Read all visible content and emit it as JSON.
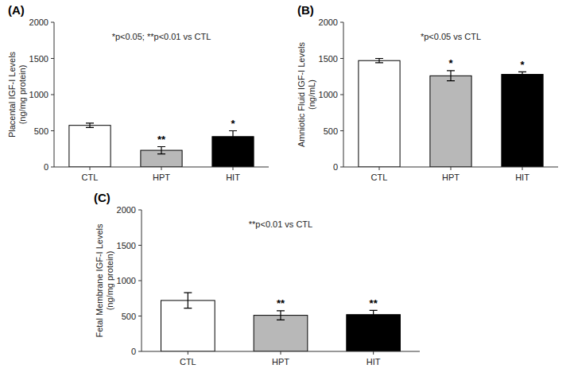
{
  "chart_data": [
    {
      "type": "bar",
      "title": "(A)",
      "categories": [
        "CTL",
        "HPT",
        "HIT"
      ],
      "values": [
        575,
        230,
        420
      ],
      "errors": [
        30,
        50,
        80
      ],
      "colors": [
        "white",
        "#b8b8b8",
        "black"
      ],
      "ylabel": "Placental IGF-I Levels\n(ng/mg protein)",
      "ylim": [
        0,
        2000
      ],
      "yticks": [
        0,
        500,
        1000,
        1500,
        2000
      ],
      "annotations": [
        "*p<0.05; **p<0.01 vs CTL"
      ],
      "sig_labels": [
        null,
        "**",
        "*"
      ],
      "grid": false
    },
    {
      "type": "bar",
      "title": "(B)",
      "categories": [
        "CTL",
        "HPT",
        "HIT"
      ],
      "values": [
        1470,
        1260,
        1280
      ],
      "errors": [
        30,
        70,
        35
      ],
      "colors": [
        "white",
        "#b8b8b8",
        "black"
      ],
      "ylabel": "Amniotic Fluid IGF-I Levels\n(ng/mL)",
      "ylim": [
        0,
        2000
      ],
      "yticks": [
        0,
        500,
        1000,
        1500,
        2000
      ],
      "annotations": [
        "*p<0.05 vs CTL"
      ],
      "sig_labels": [
        null,
        "*",
        "*"
      ],
      "grid": false
    },
    {
      "type": "bar",
      "title": "(C)",
      "categories": [
        "CTL",
        "HPT",
        "HIT"
      ],
      "values": [
        720,
        510,
        520
      ],
      "errors": [
        110,
        65,
        60
      ],
      "colors": [
        "white",
        "#b8b8b8",
        "black"
      ],
      "ylabel": "Fetal Membrane IGF-I Levels\n(ng/mg protein)",
      "ylim": [
        0,
        2000
      ],
      "yticks": [
        0,
        500,
        1000,
        1500,
        2000
      ],
      "annotations": [
        "**p<0.01 vs CTL"
      ],
      "sig_labels": [
        null,
        "**",
        "**"
      ],
      "grid": false
    }
  ]
}
